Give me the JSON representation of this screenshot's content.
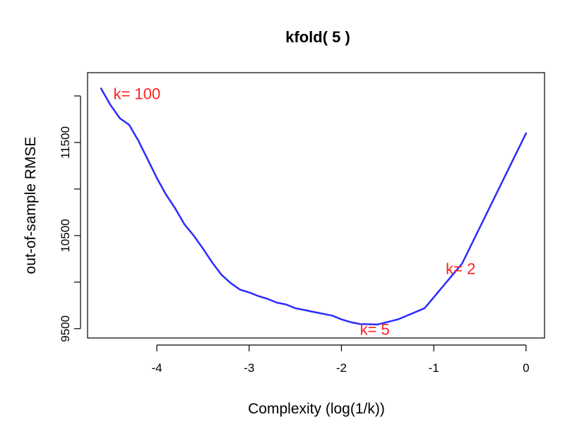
{
  "chart_data": {
    "type": "line",
    "title": "kfold( 5 )",
    "xlabel": "Complexity (log(1/k))",
    "ylabel": "out-of-sample RMSE",
    "xlim": [
      -4.75,
      0.2
    ],
    "ylim": [
      9400,
      12250
    ],
    "x_ticks": [
      -4,
      -3,
      -2,
      -1,
      0
    ],
    "x_tick_labels": [
      "-4",
      "-3",
      "-2",
      "-1",
      "0"
    ],
    "y_ticks": [
      9500,
      10000,
      10500,
      11000,
      11500,
      12000
    ],
    "y_tick_labels": [
      "9500",
      "",
      "10500",
      "",
      "11500",
      ""
    ],
    "grid": false,
    "legend": "none",
    "line_color": "#2b2bff",
    "annotation_color": "#ff2020",
    "series": [
      {
        "x": [
          -4.605,
          -4.5,
          -4.4,
          -4.3,
          -4.2,
          -4.1,
          -4.0,
          -3.9,
          -3.8,
          -3.7,
          -3.6,
          -3.5,
          -3.4,
          -3.3,
          -3.2,
          -3.1,
          -3.0,
          -2.9,
          -2.8,
          -2.7,
          -2.6,
          -2.5,
          -2.4,
          -2.3,
          -2.2,
          -2.1,
          -2.0,
          -1.9,
          -1.8,
          -1.609,
          -1.386,
          -1.099,
          -0.693,
          0.0
        ],
        "values": [
          12080,
          11900,
          11760,
          11690,
          11520,
          11320,
          11120,
          10940,
          10790,
          10620,
          10500,
          10360,
          10210,
          10080,
          9990,
          9920,
          9890,
          9850,
          9820,
          9780,
          9760,
          9720,
          9700,
          9680,
          9660,
          9640,
          9600,
          9570,
          9550,
          9545,
          9600,
          9720,
          10200,
          11600
        ]
      }
    ],
    "annotations": [
      {
        "text": "k= 100",
        "x": -4.47,
        "y": 12010
      },
      {
        "text": "k= 5",
        "x": -1.8,
        "y": 9480
      },
      {
        "text": "k= 2",
        "x": -0.87,
        "y": 10130
      }
    ]
  }
}
